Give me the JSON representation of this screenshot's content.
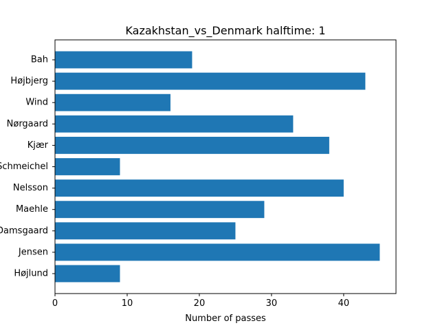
{
  "chart_data": {
    "type": "bar",
    "orientation": "horizontal",
    "title": "Kazakhstan_vs_Denmark halftime: 1",
    "xlabel": "Number of passes",
    "ylabel": "",
    "categories": [
      "Bah",
      "Højbjerg",
      "Wind",
      "Nørgaard",
      "Kjær",
      "Schmeichel",
      "Nelsson",
      "Maehle",
      "Damsgaard",
      "Jensen",
      "Højlund"
    ],
    "values": [
      19,
      43,
      16,
      33,
      38,
      9,
      40,
      29,
      25,
      45,
      9
    ],
    "xlim": [
      0,
      47.25
    ],
    "xticks": [
      0,
      10,
      20,
      30,
      40
    ],
    "bar_color": "#1f77b4",
    "grid": false,
    "legend": "none"
  }
}
